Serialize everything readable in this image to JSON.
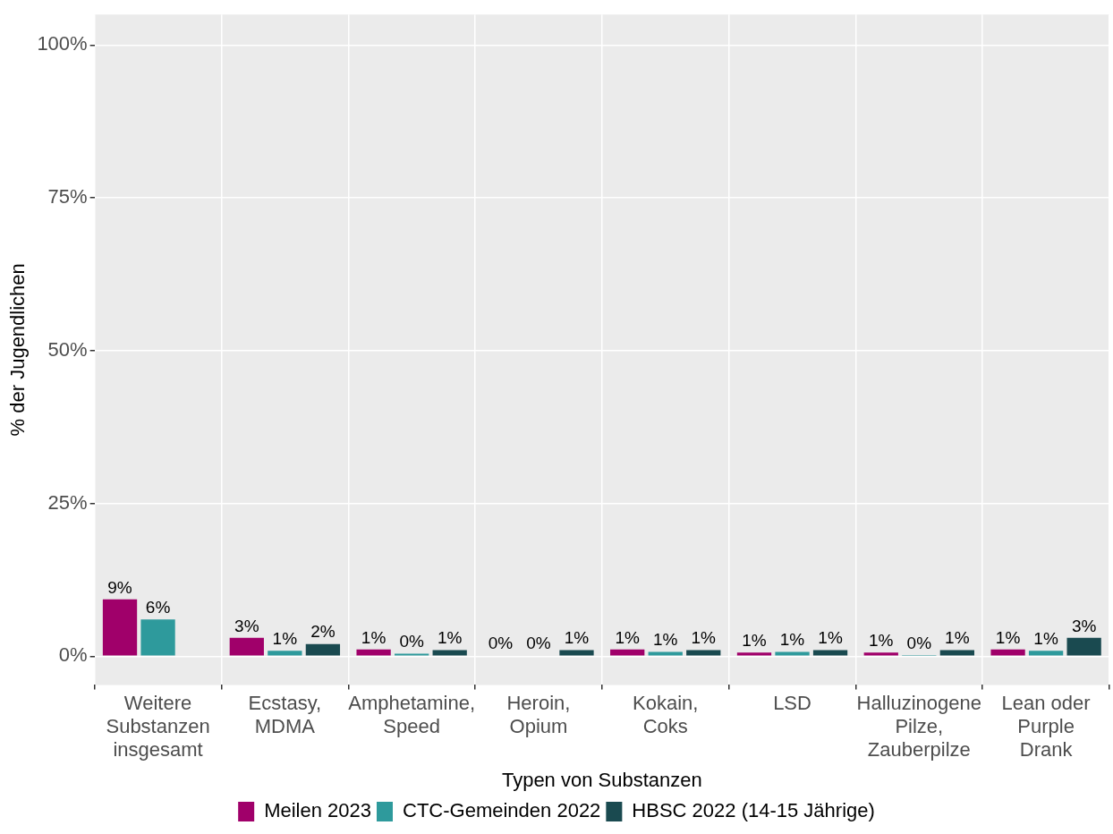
{
  "chart_data": {
    "type": "bar",
    "xlabel": "Typen von Substanzen",
    "ylabel": "% der Jugendlichen",
    "categories": [
      "Weitere Substanzen insgesamt",
      "Ecstasy, MDMA",
      "Amphetamine, Speed",
      "Heroin, Opium",
      "Kokain, Coks",
      "LSD",
      "Halluzinogene Pilze, Zauberpilze",
      "Lean oder Purple Drank"
    ],
    "series": [
      {
        "name": "Meilen 2023",
        "color": "#a0006a",
        "values": [
          9.3,
          3.0,
          1.1,
          0.1,
          1.1,
          0.6,
          0.6,
          1.1
        ],
        "value_labels": [
          "9%",
          "3%",
          "1%",
          "0%",
          "1%",
          "1%",
          "1%",
          "1%"
        ]
      },
      {
        "name": "CTC-Gemeinden 2022",
        "color": "#2e9a9c",
        "values": [
          6.0,
          0.9,
          0.4,
          0.1,
          0.7,
          0.7,
          0.2,
          0.9
        ],
        "value_labels": [
          "6%",
          "1%",
          "0%",
          "0%",
          "1%",
          "1%",
          "0%",
          "1%"
        ]
      },
      {
        "name": "HBSC 2022 (14-15 Jährige)",
        "color": "#1a4a50",
        "values": [
          null,
          2.0,
          1.0,
          1.0,
          1.0,
          1.0,
          1.0,
          3.0
        ],
        "value_labels": [
          null,
          "2%",
          "1%",
          "1%",
          "1%",
          "1%",
          "1%",
          "3%"
        ]
      }
    ],
    "ylim": [
      -4.7,
      105
    ],
    "yticks": [
      {
        "value": 0,
        "label": "0%"
      },
      {
        "value": 25,
        "label": "25%"
      },
      {
        "value": 50,
        "label": "50%"
      },
      {
        "value": 75,
        "label": "75%"
      },
      {
        "value": 100,
        "label": "100%"
      }
    ],
    "grid": true,
    "legend": "bottom"
  }
}
